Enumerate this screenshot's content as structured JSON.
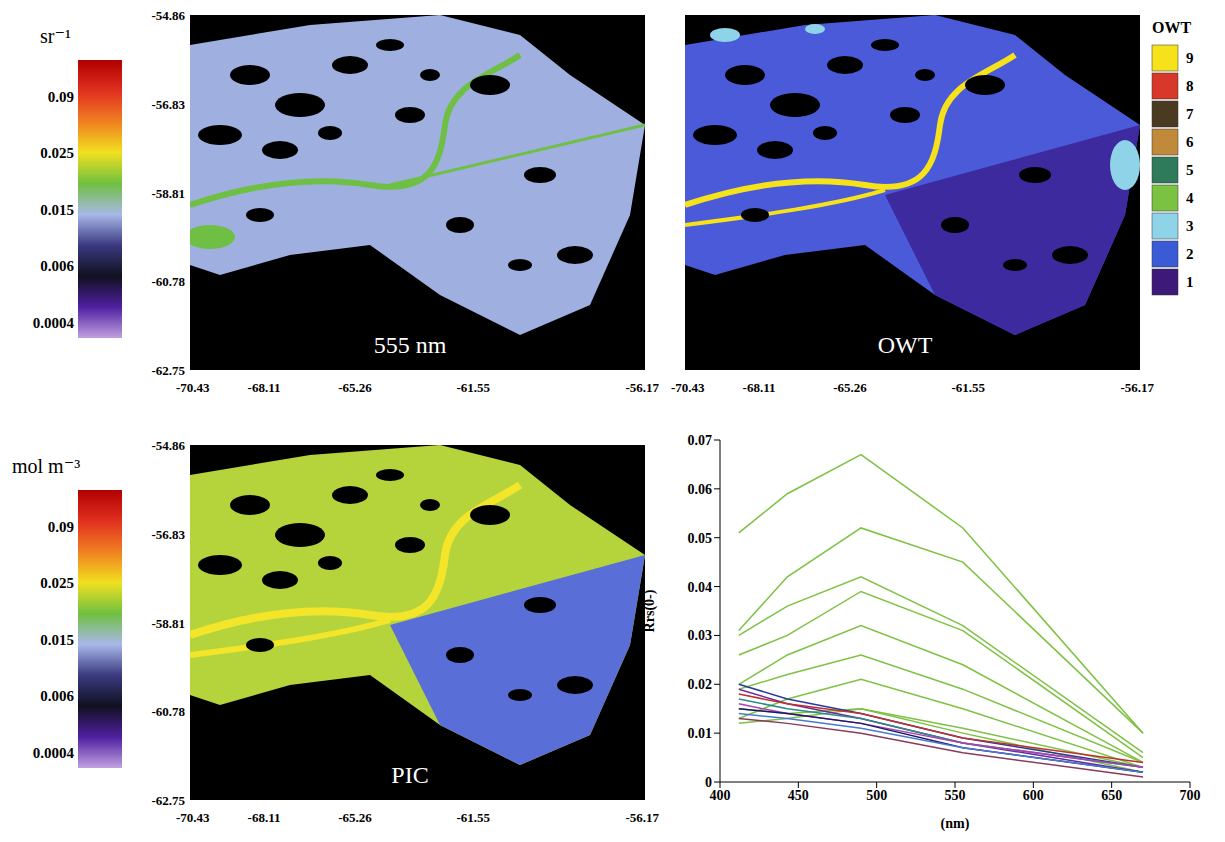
{
  "chart_data": [
    {
      "type": "map",
      "title": "555 nm",
      "xlim": [
        -70.43,
        -56.17
      ],
      "ylim": [
        -62.75,
        -54.86
      ],
      "xticks": [
        -70.43,
        -68.11,
        -65.26,
        -61.55,
        -56.17
      ],
      "yticks": [
        -54.86,
        -56.83,
        -58.81,
        -60.78,
        -62.75
      ],
      "colorbar": {
        "label": "sr⁻¹",
        "ticks": [
          0.09,
          0.025,
          0.015,
          0.006,
          0.0004
        ]
      }
    },
    {
      "type": "map",
      "title": "OWT",
      "xlim": [
        -70.43,
        -56.17
      ],
      "ylim": [
        -62.75,
        -54.86
      ],
      "xticks": [
        -70.43,
        -68.11,
        -65.26,
        -61.55,
        -56.17
      ],
      "tick_labels": "x",
      "colorbar": {
        "label": "OWT",
        "ticks": [
          9,
          8,
          7,
          6,
          5,
          4,
          3,
          2,
          1
        ],
        "colors": [
          "#f5e21b",
          "#d8382a",
          "#4a3a22",
          "#c08a3a",
          "#2e7a5a",
          "#7cc242",
          "#8fd3e8",
          "#3b5bd6",
          "#3d1a7a"
        ]
      }
    },
    {
      "type": "map",
      "title": "PIC",
      "xlim": [
        -70.43,
        -56.17
      ],
      "ylim": [
        -62.75,
        -54.86
      ],
      "xticks": [
        -70.43,
        -68.11,
        -65.26,
        -61.55,
        -56.17
      ],
      "yticks": [
        -54.86,
        -56.83,
        -58.81,
        -60.78,
        -62.75
      ],
      "colorbar": {
        "label": "mol m⁻³",
        "ticks": [
          0.09,
          0.025,
          0.015,
          0.006,
          0.0004
        ]
      }
    },
    {
      "type": "line",
      "x": [
        412,
        443,
        490,
        555,
        670
      ],
      "xlabel": "(nm)",
      "ylabel": "Rrs(0-)",
      "xlim": [
        400,
        700
      ],
      "xticks": [
        400,
        450,
        500,
        550,
        600,
        650,
        700
      ],
      "ylim": [
        0,
        0.07
      ],
      "yticks": [
        0,
        0.01,
        0.02,
        0.03,
        0.04,
        0.05,
        0.06,
        0.07
      ],
      "series": [
        {
          "color": "#7dc242",
          "values": [
            0.051,
            0.059,
            0.067,
            0.052,
            0.01
          ]
        },
        {
          "color": "#7dc242",
          "values": [
            0.031,
            0.042,
            0.052,
            0.045,
            0.01
          ]
        },
        {
          "color": "#7dc242",
          "values": [
            0.03,
            0.036,
            0.042,
            0.032,
            0.006
          ]
        },
        {
          "color": "#7dc242",
          "values": [
            0.026,
            0.03,
            0.039,
            0.031,
            0.005
          ]
        },
        {
          "color": "#7dc242",
          "values": [
            0.02,
            0.026,
            0.032,
            0.024,
            0.004
          ]
        },
        {
          "color": "#7dc242",
          "values": [
            0.019,
            0.022,
            0.026,
            0.019,
            0.004
          ]
        },
        {
          "color": "#7dc242",
          "values": [
            0.013,
            0.017,
            0.021,
            0.015,
            0.003
          ]
        },
        {
          "color": "#7dc242",
          "values": [
            0.015,
            0.014,
            0.015,
            0.011,
            0.003
          ]
        },
        {
          "color": "#7dc242",
          "values": [
            0.012,
            0.013,
            0.015,
            0.01,
            0.002
          ]
        },
        {
          "color": "#2a3a9a",
          "values": [
            0.02,
            0.017,
            0.014,
            0.009,
            0.003
          ]
        },
        {
          "color": "#6a2aa0",
          "values": [
            0.019,
            0.016,
            0.013,
            0.008,
            0.002
          ]
        },
        {
          "color": "#c03030",
          "values": [
            0.018,
            0.016,
            0.014,
            0.009,
            0.004
          ]
        },
        {
          "color": "#2a8a8a",
          "values": [
            0.017,
            0.015,
            0.013,
            0.008,
            0.003
          ]
        },
        {
          "color": "#b040b0",
          "values": [
            0.016,
            0.014,
            0.012,
            0.008,
            0.003
          ]
        },
        {
          "color": "#1a1a6a",
          "values": [
            0.015,
            0.014,
            0.012,
            0.007,
            0.002
          ]
        },
        {
          "color": "#4a7ad0",
          "values": [
            0.014,
            0.013,
            0.011,
            0.007,
            0.002
          ]
        },
        {
          "color": "#8a3a5a",
          "values": [
            0.013,
            0.012,
            0.01,
            0.006,
            0.001
          ]
        }
      ]
    }
  ]
}
